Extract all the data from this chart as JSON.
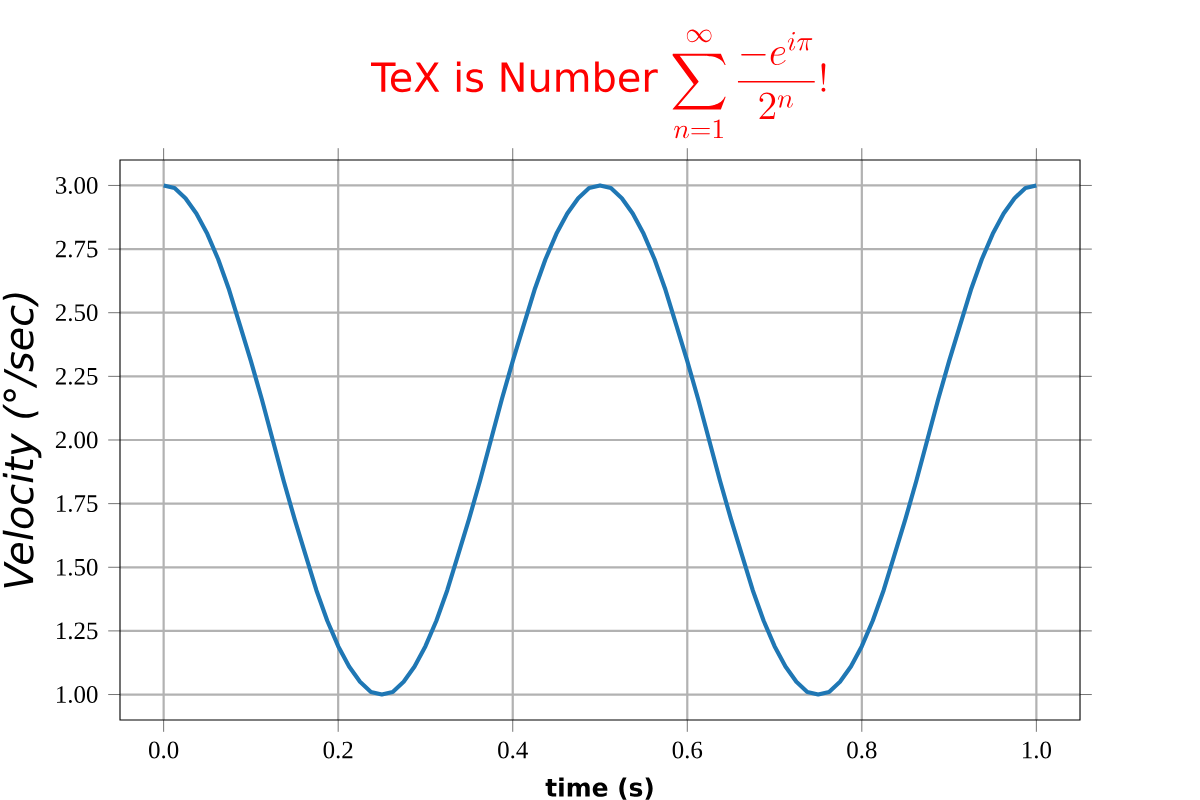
{
  "chart_data": {
    "type": "line",
    "title": "TeX is Number",
    "annotations": [
      "\\sum_{n=1}^{\\infty}\\frac{-e^{i\\pi}}{2^n}!"
    ],
    "xlabel": "**time (s)**",
    "ylabel": "*Velocity (°/sec)*",
    "x": [
      0,
      0.0125,
      0.025,
      0.0375,
      0.05,
      0.0625,
      0.075,
      0.0875,
      0.1,
      0.1125,
      0.125,
      0.1375,
      0.15,
      0.1625,
      0.175,
      0.1875,
      0.2,
      0.2125,
      0.225,
      0.2375,
      0.25,
      0.2625,
      0.275,
      0.2875,
      0.3,
      0.3125,
      0.325,
      0.3375,
      0.35,
      0.3625,
      0.375,
      0.3875,
      0.4,
      0.4125,
      0.425,
      0.4375,
      0.45,
      0.4625,
      0.475,
      0.4875,
      0.5,
      0.5125,
      0.525,
      0.5375,
      0.55,
      0.5625,
      0.575,
      0.5875,
      0.6,
      0.6125,
      0.625,
      0.6375,
      0.65,
      0.6625,
      0.675,
      0.6875,
      0.7,
      0.7125,
      0.725,
      0.7375,
      0.75,
      0.7625,
      0.775,
      0.7875,
      0.8,
      0.8125,
      0.825,
      0.8375,
      0.85,
      0.8625,
      0.875,
      0.8875,
      0.9,
      0.9125,
      0.925,
      0.9375,
      0.95,
      0.9625,
      0.975,
      0.9875,
      1
    ],
    "series": [
      {
        "color": "#1f77b4",
        "values": [
          3.0,
          2.99,
          2.95,
          2.89,
          2.81,
          2.71,
          2.59,
          2.45,
          2.31,
          2.16,
          2.0,
          1.84,
          1.69,
          1.55,
          1.41,
          1.29,
          1.19,
          1.11,
          1.05,
          1.01,
          1.0,
          1.01,
          1.05,
          1.11,
          1.19,
          1.29,
          1.41,
          1.55,
          1.69,
          1.84,
          2.0,
          2.16,
          2.31,
          2.45,
          2.59,
          2.71,
          2.81,
          2.89,
          2.95,
          2.99,
          3.0,
          2.99,
          2.95,
          2.89,
          2.81,
          2.71,
          2.59,
          2.45,
          2.31,
          2.16,
          2.0,
          1.84,
          1.69,
          1.55,
          1.41,
          1.29,
          1.19,
          1.11,
          1.05,
          1.01,
          1.0,
          1.01,
          1.05,
          1.11,
          1.19,
          1.29,
          1.41,
          1.55,
          1.69,
          1.84,
          2.0,
          2.16,
          2.31,
          2.45,
          2.59,
          2.71,
          2.81,
          2.89,
          2.95,
          2.99,
          3.0
        ]
      }
    ],
    "xlim": [
      -0.05,
      1.05
    ],
    "ylim": [
      0.9,
      3.1
    ],
    "xticks": [
      {
        "value": 0,
        "label": "0.0"
      },
      {
        "value": 0.2,
        "label": "0.2"
      },
      {
        "value": 0.4,
        "label": "0.4"
      },
      {
        "value": 0.6,
        "label": "0.6"
      },
      {
        "value": 0.8,
        "label": "0.8"
      },
      {
        "value": 1,
        "label": "1.0"
      }
    ],
    "yticks": [
      {
        "value": 1,
        "label": "1.00"
      },
      1.25,
      {
        "value": 1.5,
        "label": "1.50"
      },
      1.75,
      {
        "value": 2,
        "label": "2.00"
      },
      2.25,
      {
        "value": 2.5,
        "label": "2.50"
      },
      2.75,
      {
        "value": 3,
        "label": "3.00"
      }
    ],
    "grid": true,
    "marker": "none",
    "line_style": "solid"
  }
}
